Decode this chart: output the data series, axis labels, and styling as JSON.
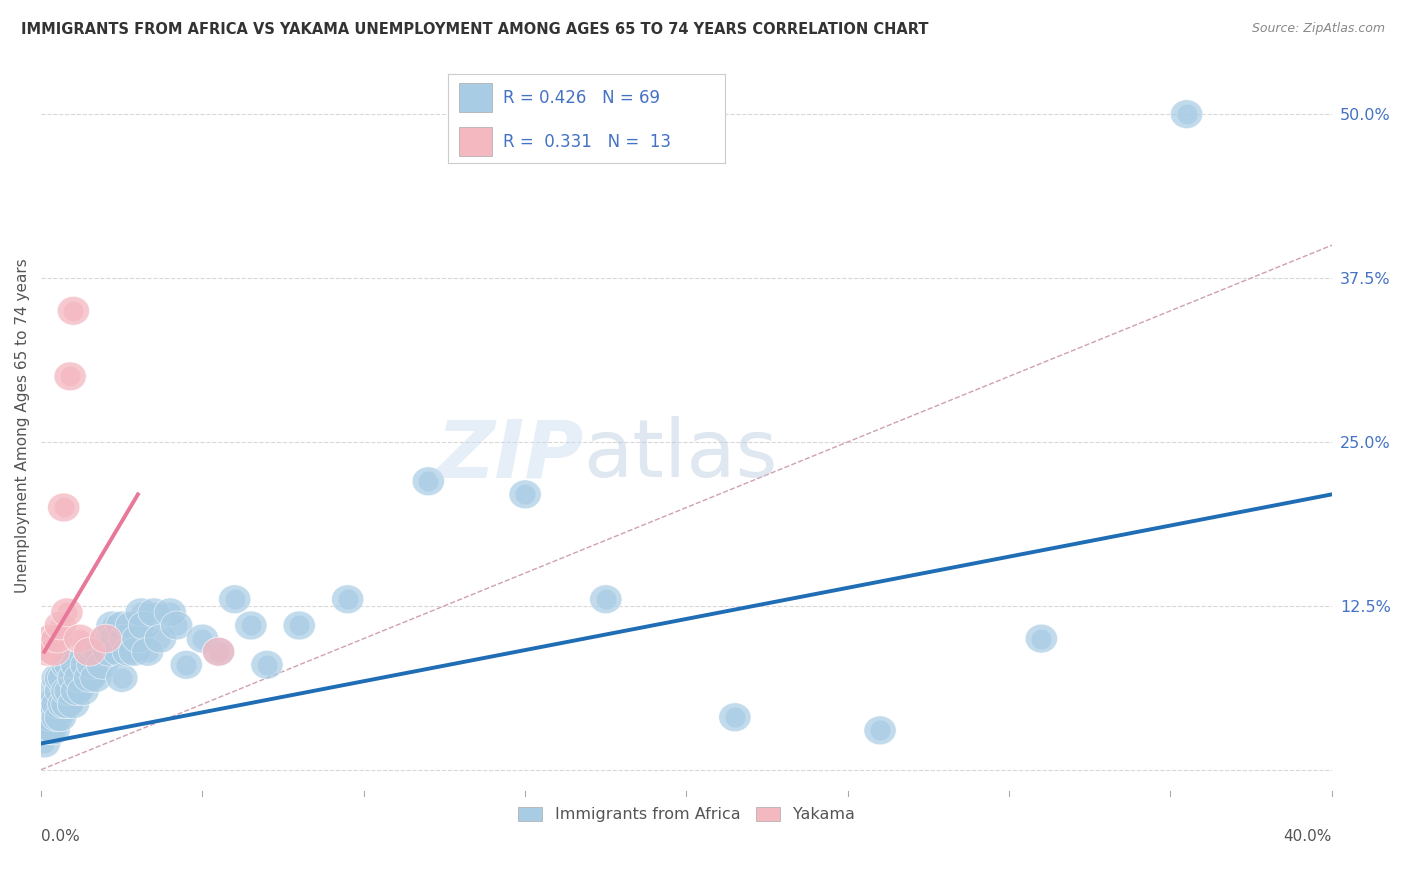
{
  "title": "IMMIGRANTS FROM AFRICA VS YAKAMA UNEMPLOYMENT AMONG AGES 65 TO 74 YEARS CORRELATION CHART",
  "source": "Source: ZipAtlas.com",
  "ylabel": "Unemployment Among Ages 65 to 74 years",
  "ytick_values": [
    0.0,
    0.125,
    0.25,
    0.375,
    0.5
  ],
  "xlim": [
    0.0,
    0.4
  ],
  "ylim": [
    -0.02,
    0.545
  ],
  "legend_r1": "0.426",
  "legend_n1": "69",
  "legend_r2": "0.331",
  "legend_n2": "13",
  "color_blue": "#a8cce4",
  "color_pink": "#f4b8c1",
  "color_line_blue": "#1f6db5",
  "color_line_pink": "#e87899",
  "color_diagonal": "#d0d0d0",
  "color_text_blue": "#4472c4",
  "blue_points_x": [
    0.001,
    0.002,
    0.002,
    0.003,
    0.003,
    0.003,
    0.004,
    0.004,
    0.004,
    0.005,
    0.005,
    0.005,
    0.006,
    0.006,
    0.006,
    0.007,
    0.007,
    0.008,
    0.008,
    0.008,
    0.009,
    0.009,
    0.01,
    0.01,
    0.011,
    0.011,
    0.012,
    0.013,
    0.014,
    0.015,
    0.015,
    0.016,
    0.017,
    0.018,
    0.019,
    0.02,
    0.021,
    0.022,
    0.023,
    0.024,
    0.025,
    0.025,
    0.026,
    0.027,
    0.028,
    0.029,
    0.03,
    0.031,
    0.032,
    0.033,
    0.035,
    0.037,
    0.04,
    0.042,
    0.045,
    0.05,
    0.055,
    0.06,
    0.065,
    0.07,
    0.08,
    0.095,
    0.12,
    0.15,
    0.175,
    0.215,
    0.26,
    0.31,
    0.355
  ],
  "blue_points_y": [
    0.02,
    0.03,
    0.04,
    0.03,
    0.04,
    0.05,
    0.03,
    0.05,
    0.06,
    0.04,
    0.05,
    0.07,
    0.04,
    0.06,
    0.07,
    0.05,
    0.07,
    0.05,
    0.06,
    0.08,
    0.06,
    0.08,
    0.05,
    0.07,
    0.06,
    0.08,
    0.07,
    0.06,
    0.08,
    0.07,
    0.09,
    0.08,
    0.07,
    0.09,
    0.08,
    0.1,
    0.09,
    0.11,
    0.1,
    0.09,
    0.11,
    0.07,
    0.1,
    0.09,
    0.11,
    0.09,
    0.1,
    0.12,
    0.11,
    0.09,
    0.12,
    0.1,
    0.12,
    0.11,
    0.08,
    0.1,
    0.09,
    0.13,
    0.11,
    0.08,
    0.11,
    0.13,
    0.22,
    0.21,
    0.13,
    0.04,
    0.03,
    0.1,
    0.5
  ],
  "pink_points_x": [
    0.002,
    0.003,
    0.004,
    0.005,
    0.006,
    0.007,
    0.008,
    0.009,
    0.01,
    0.012,
    0.015,
    0.02,
    0.055
  ],
  "pink_points_y": [
    0.09,
    0.1,
    0.09,
    0.1,
    0.11,
    0.2,
    0.12,
    0.3,
    0.35,
    0.1,
    0.09,
    0.1,
    0.09
  ],
  "blue_line_x": [
    0.0,
    0.4
  ],
  "blue_line_y": [
    0.02,
    0.21
  ],
  "pink_line_x": [
    0.001,
    0.03
  ],
  "pink_line_y": [
    0.09,
    0.21
  ]
}
